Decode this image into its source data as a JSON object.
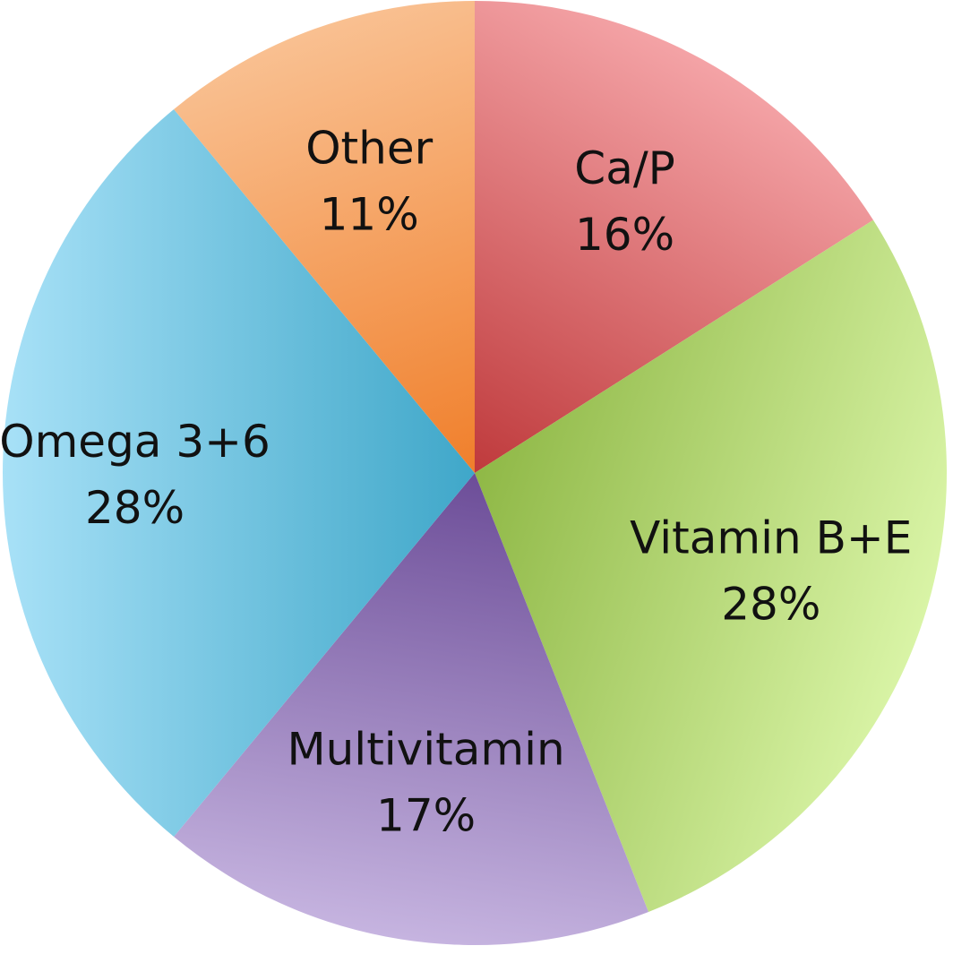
{
  "chart_data": {
    "type": "pie",
    "start_angle_deg": 0,
    "direction": "clockwise",
    "slices": [
      {
        "label": "Ca/P",
        "value": 16,
        "value_label": "16%",
        "color_light": "#f4a3a6",
        "color_dark": "#bf3a3c"
      },
      {
        "label": "Vitamin B+E",
        "value": 28,
        "value_label": "28%",
        "color_light": "#d9f4a6",
        "color_dark": "#8fb846"
      },
      {
        "label": "Multivitamin",
        "value": 17,
        "value_label": "17%",
        "color_light": "#c6b4e0",
        "color_dark": "#6c4d98"
      },
      {
        "label": "Omega 3+6",
        "value": 28,
        "value_label": "28%",
        "color_light": "#a8e1f7",
        "color_dark": "#3fa7c9"
      },
      {
        "label": "Other",
        "value": 11,
        "value_label": "11%",
        "color_light": "#f9c091",
        "color_dark": "#f07f2b"
      }
    ]
  }
}
